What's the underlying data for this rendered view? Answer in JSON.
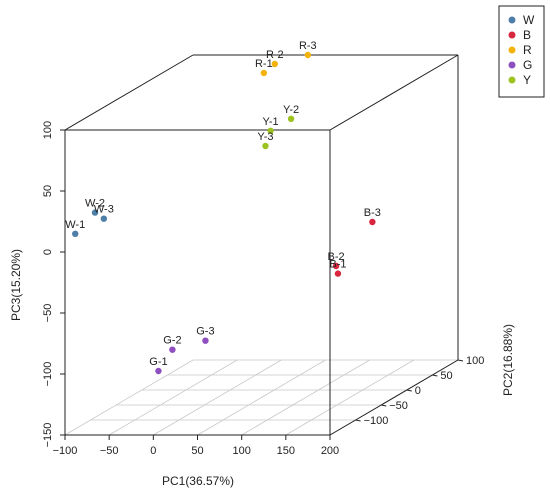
{
  "chart_data": {
    "type": "scatter",
    "projection": "3d",
    "x_axis": {
      "label": "PC1(36.57%)",
      "range": [
        -100,
        200
      ],
      "ticks": [
        -100,
        -50,
        0,
        50,
        100,
        150,
        200
      ]
    },
    "y_axis": {
      "label": "PC2(16.88%)",
      "range": [
        -150,
        100
      ],
      "ticks": [
        -100,
        -50,
        0,
        50,
        100
      ]
    },
    "z_axis": {
      "label": "PC3(15.20%)",
      "range": [
        -150,
        100
      ],
      "ticks": [
        -150,
        -100,
        -50,
        0,
        50,
        100
      ]
    },
    "grid": "floor",
    "legend": {
      "placement": "top-right"
    },
    "series": [
      {
        "name": "W",
        "color": "#4d7fa8",
        "points": [
          {
            "label": "W-1",
            "x": -100,
            "y": -130,
            "z": 10
          },
          {
            "label": "W-2",
            "x": -95,
            "y": -100,
            "z": 20
          },
          {
            "label": "W-3",
            "x": -85,
            "y": -100,
            "z": 15
          }
        ]
      },
      {
        "name": "B",
        "color": "#d7263d",
        "points": [
          {
            "label": "B-1",
            "x": 180,
            "y": -100,
            "z": -30
          },
          {
            "label": "B-2",
            "x": 175,
            "y": -95,
            "z": -25
          },
          {
            "label": "B-3",
            "x": 190,
            "y": -50,
            "z": 0
          }
        ]
      },
      {
        "name": "R",
        "color": "#f4b30a",
        "points": [
          {
            "label": "R-1",
            "x": 15,
            "y": 40,
            "z": 100
          },
          {
            "label": "R-2",
            "x": 10,
            "y": 70,
            "z": 100
          },
          {
            "label": "R-3",
            "x": 30,
            "y": 100,
            "z": 100
          }
        ]
      },
      {
        "name": "G",
        "color": "#8e4fbf",
        "points": [
          {
            "label": "G-1",
            "x": 0,
            "y": -140,
            "z": -100
          },
          {
            "label": "G-2",
            "x": 10,
            "y": -130,
            "z": -85
          },
          {
            "label": "G-3",
            "x": 30,
            "y": -100,
            "z": -85
          }
        ]
      },
      {
        "name": "Y",
        "color": "#9dc320",
        "points": [
          {
            "label": "Y-1",
            "x": 40,
            "y": 10,
            "z": 60
          },
          {
            "label": "Y-2",
            "x": 40,
            "y": 50,
            "z": 60
          },
          {
            "label": "Y-3",
            "x": 40,
            "y": 0,
            "z": 50
          }
        ]
      }
    ]
  }
}
